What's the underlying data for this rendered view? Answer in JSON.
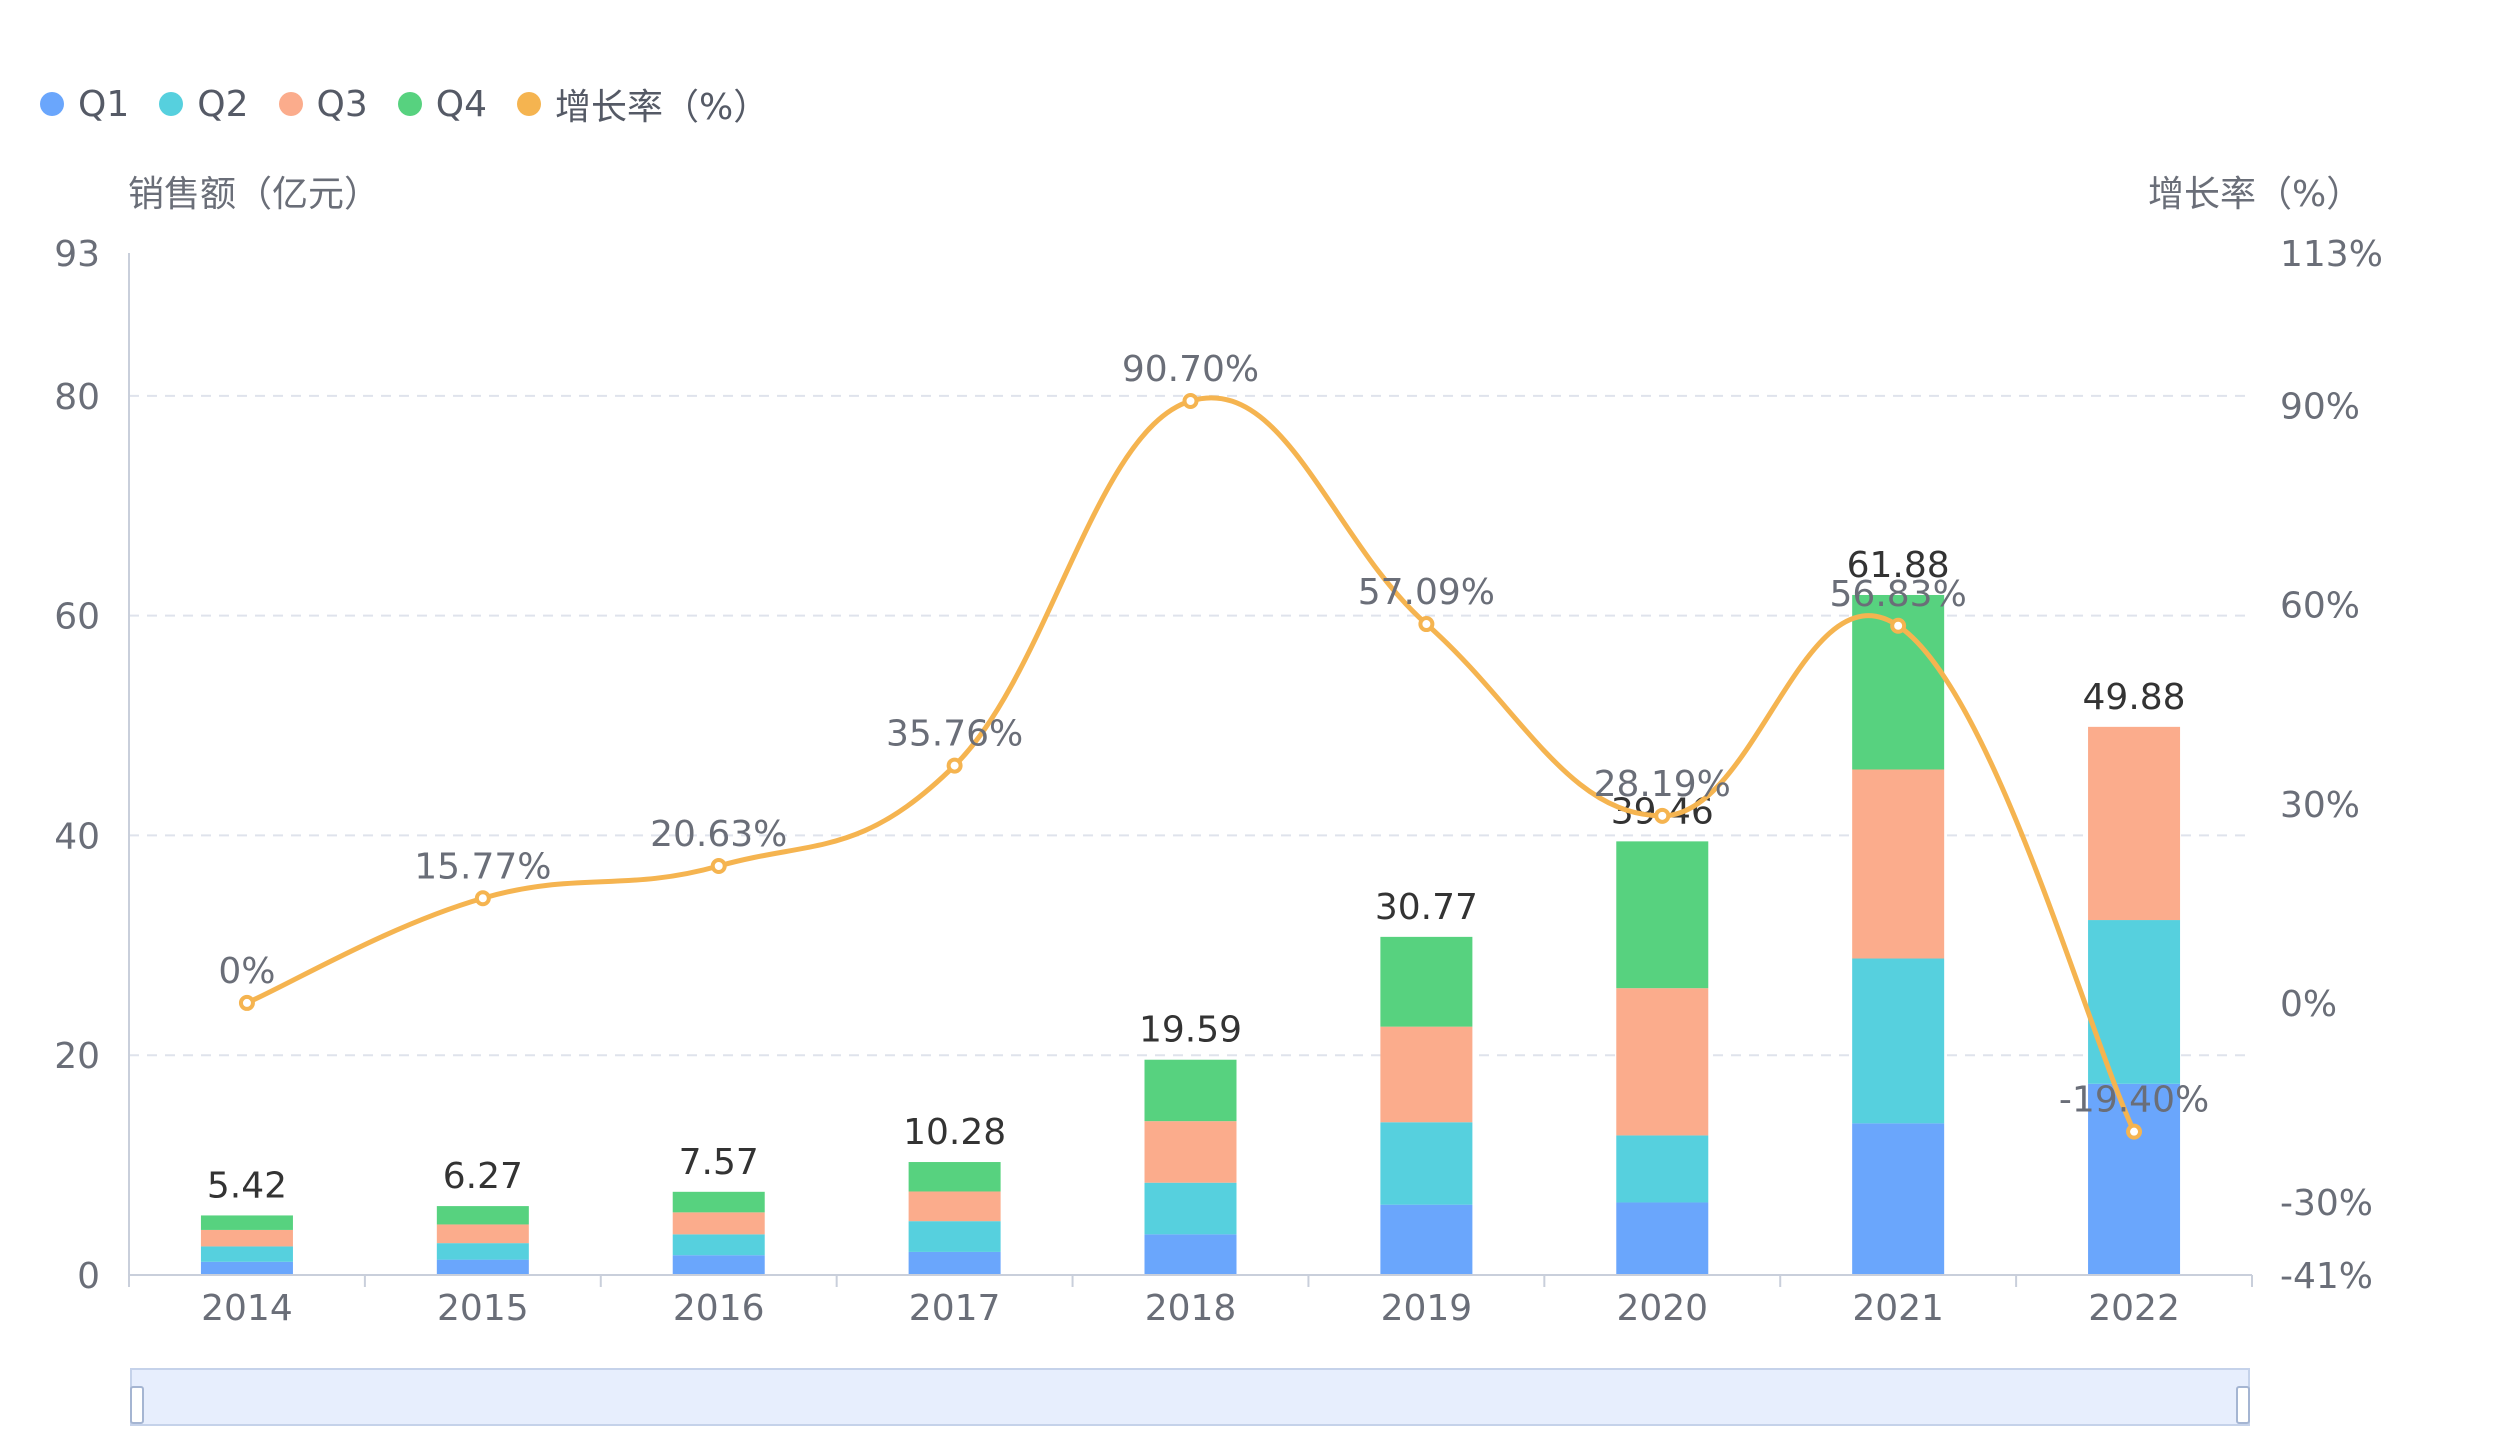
{
  "legend": [
    {
      "label": "Q1",
      "color": "#6aa6fc"
    },
    {
      "label": "Q2",
      "color": "#56d0de"
    },
    {
      "label": "Q3",
      "color": "#fbac8c"
    },
    {
      "label": "Q4",
      "color": "#57d27f"
    },
    {
      "label": "增长率（%）",
      "color": "#f5b450"
    }
  ],
  "axis_titles": {
    "left": "销售额（亿元）",
    "right": "增长率（%）"
  },
  "chart_data": {
    "type": "bar",
    "stacked": true,
    "categories": [
      "2014",
      "2015",
      "2016",
      "2017",
      "2018",
      "2019",
      "2020",
      "2021",
      "2022"
    ],
    "series": [
      {
        "name": "Q1",
        "type": "bar",
        "color": "#6aa6fc",
        "values": [
          1.2,
          1.4,
          1.8,
          2.1,
          3.7,
          6.4,
          6.6,
          13.8,
          17.4
        ]
      },
      {
        "name": "Q2",
        "type": "bar",
        "color": "#56d0de",
        "values": [
          1.4,
          1.5,
          1.9,
          2.8,
          4.7,
          7.5,
          6.1,
          15.0,
          14.9
        ]
      },
      {
        "name": "Q3",
        "type": "bar",
        "color": "#fbac8c",
        "values": [
          1.5,
          1.7,
          2.0,
          2.7,
          5.6,
          8.7,
          13.4,
          17.2,
          17.58
        ]
      },
      {
        "name": "Q4",
        "type": "bar",
        "color": "#57d27f",
        "values": [
          1.32,
          1.67,
          1.87,
          2.68,
          5.59,
          8.17,
          13.36,
          15.88,
          0
        ]
      },
      {
        "name": "增长率（%）",
        "type": "line",
        "axis": "right",
        "color": "#f5b450",
        "values": [
          0,
          15.77,
          20.63,
          35.76,
          90.7,
          57.09,
          28.19,
          56.83,
          -19.4
        ]
      }
    ],
    "totals": [
      5.42,
      6.27,
      7.57,
      10.28,
      19.59,
      30.77,
      39.46,
      61.88,
      49.88
    ],
    "total_labels": [
      "5.42",
      "6.27",
      "7.57",
      "10.28",
      "19.59",
      "30.77",
      "39.46",
      "61.88",
      "49.88"
    ],
    "rate_labels": [
      "0%",
      "15.77%",
      "20.63%",
      "35.76%",
      "90.70%",
      "57.09%",
      "28.19%",
      "56.83%",
      "-19.40%"
    ],
    "y_left": {
      "ticks": [
        0,
        20,
        40,
        60,
        80,
        93
      ],
      "tick_labels": [
        "0",
        "20",
        "40",
        "60",
        "80",
        "93"
      ],
      "min": 0,
      "max": 93
    },
    "y_right": {
      "ticks": [
        -41,
        -30,
        0,
        30,
        60,
        90,
        113
      ],
      "tick_labels": [
        "-41%",
        "-30%",
        "0%",
        "30%",
        "60%",
        "90%",
        "113%"
      ],
      "min": -41,
      "max": 113
    },
    "grid": true,
    "legend_position": "top-left"
  }
}
